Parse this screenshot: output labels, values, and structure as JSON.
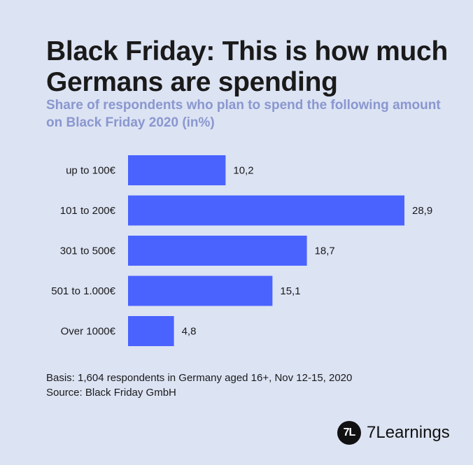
{
  "header": {
    "title": "Black Friday: This is how much Germans are spending",
    "subtitle": "Share of respondents who plan to spend the following amount on Black Friday 2020 (in%)"
  },
  "chart_data": {
    "type": "bar",
    "orientation": "horizontal",
    "categories": [
      "up to 100€",
      "101 to 200€",
      "301 to 500€",
      "501 to 1.000€",
      "Over 1000€"
    ],
    "values": [
      10.2,
      28.9,
      18.7,
      15.1,
      4.8
    ],
    "value_labels": [
      "10,2",
      "28,9",
      "18,7",
      "15,1",
      "4,8"
    ],
    "xlim": [
      0,
      28.9
    ],
    "grid": false,
    "bar_color": "#4a63ff"
  },
  "footnote": {
    "basis": "Basis: 1,604 respondents in Germany aged 16+, Nov 12-15, 2020",
    "source": "Source: Black Friday GmbH"
  },
  "brand": {
    "mark": "7L",
    "name": "7Learnings"
  },
  "colors": {
    "background": "#dce3f3",
    "subtitle": "#8a97cf",
    "bar": "#4a63ff"
  }
}
